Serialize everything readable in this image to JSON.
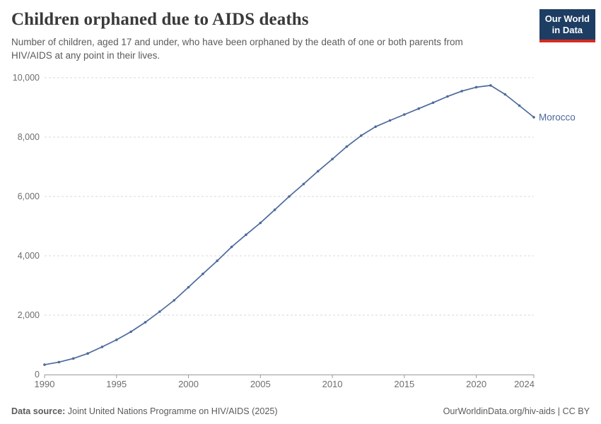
{
  "header": {
    "title": "Children orphaned due to AIDS deaths",
    "subtitle": "Number of children, aged 17 and under, who have been orphaned by the death of one or both parents from HIV/AIDS at any point in their lives.",
    "logo": {
      "line1": "Our World",
      "line2": "in Data",
      "bg_color": "#1d3d63",
      "accent_color": "#d42b21"
    }
  },
  "chart_data": {
    "type": "line",
    "title": "Children orphaned due to AIDS deaths",
    "entity_label": "Morocco",
    "x": [
      1990,
      1991,
      1992,
      1993,
      1994,
      1995,
      1996,
      1997,
      1998,
      1999,
      2000,
      2001,
      2002,
      2003,
      2004,
      2005,
      2006,
      2007,
      2008,
      2009,
      2010,
      2011,
      2012,
      2013,
      2014,
      2015,
      2016,
      2017,
      2018,
      2019,
      2020,
      2021,
      2022,
      2023,
      2024
    ],
    "series": [
      {
        "name": "Morocco",
        "color": "#4C6A9C",
        "values": [
          330,
          420,
          540,
          710,
          930,
          1170,
          1440,
          1760,
          2120,
          2500,
          2940,
          3390,
          3830,
          4300,
          4710,
          5110,
          5550,
          6000,
          6420,
          6850,
          7260,
          7680,
          8050,
          8350,
          8560,
          8760,
          8960,
          9160,
          9370,
          9550,
          9680,
          9740,
          9440,
          9060,
          8670
        ]
      }
    ],
    "xlim": [
      1990,
      2024
    ],
    "ylim": [
      0,
      10000
    ],
    "x_ticks": [
      1990,
      1995,
      2000,
      2005,
      2010,
      2015,
      2020,
      2024
    ],
    "y_ticks": [
      0,
      2000,
      4000,
      6000,
      8000,
      10000
    ],
    "y_tick_labels": [
      "0",
      "2,000",
      "4,000",
      "6,000",
      "8,000",
      "10,000"
    ],
    "grid": "horizontal-dashed",
    "legend_position": "end-of-line-label",
    "colors": {
      "gridline": "#dadada",
      "axis": "#999999",
      "tick_label": "#6e6e6e"
    }
  },
  "footer": {
    "source_label": "Data source:",
    "source_text": " Joint United Nations Programme on HIV/AIDS (2025)",
    "link_text": "OurWorldinData.org/hiv-aids | CC BY"
  }
}
